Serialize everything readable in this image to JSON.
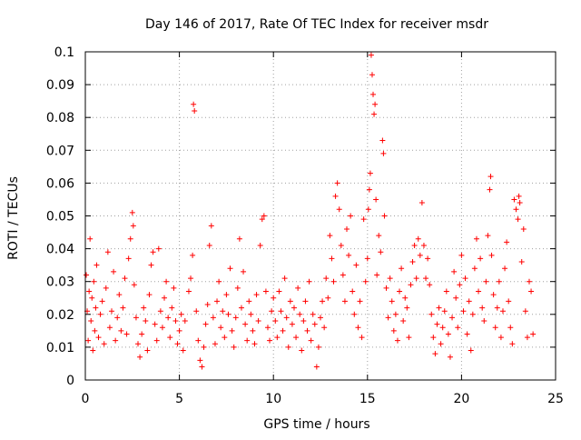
{
  "chart_data": {
    "type": "scatter",
    "title": "Day 146 of 2017, Rate Of TEC Index for receiver msdr",
    "xlabel": "GPS time / hours",
    "ylabel": "ROTI / TECUs",
    "xlim": [
      0,
      25
    ],
    "ylim": [
      0,
      0.1
    ],
    "x_ticks": [
      0,
      5,
      10,
      15,
      20,
      25
    ],
    "x_tick_labels": [
      "0",
      "5",
      "10",
      "15",
      "20",
      "25"
    ],
    "y_ticks": [
      0,
      0.01,
      0.02,
      0.03,
      0.04,
      0.05,
      0.06,
      0.07,
      0.08,
      0.09,
      0.1
    ],
    "y_tick_labels": [
      "0",
      "0.01",
      "0.02",
      "0.03",
      "0.04",
      "0.05",
      "0.06",
      "0.07",
      "0.08",
      "0.09",
      "0.1"
    ],
    "grid": true,
    "marker": "plus",
    "color": "#ff0000",
    "series": [
      {
        "points": [
          [
            0.05,
            0.032
          ],
          [
            0.1,
            0.021
          ],
          [
            0.15,
            0.012
          ],
          [
            0.2,
            0.027
          ],
          [
            0.25,
            0.043
          ],
          [
            0.3,
            0.018
          ],
          [
            0.35,
            0.025
          ],
          [
            0.4,
            0.009
          ],
          [
            0.45,
            0.03
          ],
          [
            0.5,
            0.015
          ],
          [
            0.55,
            0.022
          ],
          [
            0.6,
            0.035
          ],
          [
            0.7,
            0.013
          ],
          [
            0.8,
            0.02
          ],
          [
            0.9,
            0.024
          ],
          [
            1.0,
            0.011
          ],
          [
            1.1,
            0.028
          ],
          [
            1.2,
            0.039
          ],
          [
            1.3,
            0.016
          ],
          [
            1.4,
            0.021
          ],
          [
            1.5,
            0.033
          ],
          [
            1.6,
            0.012
          ],
          [
            1.7,
            0.019
          ],
          [
            1.8,
            0.026
          ],
          [
            1.9,
            0.015
          ],
          [
            2.0,
            0.022
          ],
          [
            2.1,
            0.031
          ],
          [
            2.2,
            0.014
          ],
          [
            2.3,
            0.037
          ],
          [
            2.4,
            0.043
          ],
          [
            2.5,
            0.051
          ],
          [
            2.55,
            0.047
          ],
          [
            2.6,
            0.029
          ],
          [
            2.7,
            0.019
          ],
          [
            2.8,
            0.011
          ],
          [
            2.9,
            0.007
          ],
          [
            3.0,
            0.014
          ],
          [
            3.1,
            0.022
          ],
          [
            3.2,
            0.018
          ],
          [
            3.3,
            0.009
          ],
          [
            3.4,
            0.026
          ],
          [
            3.5,
            0.035
          ],
          [
            3.6,
            0.039
          ],
          [
            3.7,
            0.017
          ],
          [
            3.8,
            0.012
          ],
          [
            3.9,
            0.04
          ],
          [
            4.0,
            0.021
          ],
          [
            4.1,
            0.016
          ],
          [
            4.2,
            0.025
          ],
          [
            4.3,
            0.03
          ],
          [
            4.4,
            0.019
          ],
          [
            4.5,
            0.013
          ],
          [
            4.6,
            0.022
          ],
          [
            4.7,
            0.028
          ],
          [
            4.8,
            0.018
          ],
          [
            4.9,
            0.011
          ],
          [
            5.0,
            0.015
          ],
          [
            5.1,
            0.02
          ],
          [
            5.2,
            0.009
          ],
          [
            5.3,
            0.018
          ],
          [
            5.5,
            0.027
          ],
          [
            5.6,
            0.031
          ],
          [
            5.7,
            0.038
          ],
          [
            5.75,
            0.084
          ],
          [
            5.8,
            0.082
          ],
          [
            5.9,
            0.021
          ],
          [
            6.0,
            0.012
          ],
          [
            6.1,
            0.006
          ],
          [
            6.2,
            0.004
          ],
          [
            6.3,
            0.01
          ],
          [
            6.4,
            0.017
          ],
          [
            6.5,
            0.023
          ],
          [
            6.6,
            0.041
          ],
          [
            6.7,
            0.047
          ],
          [
            6.8,
            0.019
          ],
          [
            6.9,
            0.011
          ],
          [
            7.0,
            0.024
          ],
          [
            7.1,
            0.03
          ],
          [
            7.2,
            0.016
          ],
          [
            7.3,
            0.021
          ],
          [
            7.4,
            0.013
          ],
          [
            7.5,
            0.026
          ],
          [
            7.6,
            0.02
          ],
          [
            7.7,
            0.034
          ],
          [
            7.8,
            0.015
          ],
          [
            7.9,
            0.01
          ],
          [
            8.0,
            0.019
          ],
          [
            8.1,
            0.028
          ],
          [
            8.2,
            0.043
          ],
          [
            8.3,
            0.022
          ],
          [
            8.4,
            0.033
          ],
          [
            8.5,
            0.017
          ],
          [
            8.6,
            0.012
          ],
          [
            8.7,
            0.024
          ],
          [
            8.8,
            0.02
          ],
          [
            8.9,
            0.015
          ],
          [
            9.0,
            0.011
          ],
          [
            9.1,
            0.026
          ],
          [
            9.2,
            0.018
          ],
          [
            9.3,
            0.041
          ],
          [
            9.4,
            0.049
          ],
          [
            9.5,
            0.05
          ],
          [
            9.6,
            0.027
          ],
          [
            9.7,
            0.016
          ],
          [
            9.8,
            0.012
          ],
          [
            9.9,
            0.021
          ],
          [
            10.0,
            0.025
          ],
          [
            10.1,
            0.018
          ],
          [
            10.2,
            0.013
          ],
          [
            10.3,
            0.027
          ],
          [
            10.4,
            0.021
          ],
          [
            10.5,
            0.015
          ],
          [
            10.6,
            0.031
          ],
          [
            10.7,
            0.019
          ],
          [
            10.8,
            0.01
          ],
          [
            10.9,
            0.024
          ],
          [
            11.0,
            0.017
          ],
          [
            11.1,
            0.022
          ],
          [
            11.2,
            0.013
          ],
          [
            11.3,
            0.028
          ],
          [
            11.4,
            0.02
          ],
          [
            11.5,
            0.009
          ],
          [
            11.6,
            0.018
          ],
          [
            11.7,
            0.024
          ],
          [
            11.8,
            0.015
          ],
          [
            11.9,
            0.03
          ],
          [
            12.0,
            0.012
          ],
          [
            12.1,
            0.02
          ],
          [
            12.2,
            0.017
          ],
          [
            12.3,
            0.004
          ],
          [
            12.4,
            0.01
          ],
          [
            12.5,
            0.019
          ],
          [
            12.6,
            0.024
          ],
          [
            12.7,
            0.016
          ],
          [
            12.8,
            0.031
          ],
          [
            12.9,
            0.025
          ],
          [
            13.0,
            0.044
          ],
          [
            13.1,
            0.037
          ],
          [
            13.2,
            0.03
          ],
          [
            13.3,
            0.056
          ],
          [
            13.4,
            0.06
          ],
          [
            13.5,
            0.052
          ],
          [
            13.6,
            0.041
          ],
          [
            13.7,
            0.032
          ],
          [
            13.8,
            0.024
          ],
          [
            13.9,
            0.046
          ],
          [
            14.0,
            0.038
          ],
          [
            14.1,
            0.05
          ],
          [
            14.2,
            0.027
          ],
          [
            14.3,
            0.02
          ],
          [
            14.4,
            0.035
          ],
          [
            14.5,
            0.016
          ],
          [
            14.6,
            0.024
          ],
          [
            14.7,
            0.013
          ],
          [
            14.8,
            0.049
          ],
          [
            14.9,
            0.03
          ],
          [
            15.0,
            0.037
          ],
          [
            15.05,
            0.052
          ],
          [
            15.1,
            0.058
          ],
          [
            15.15,
            0.063
          ],
          [
            15.2,
            0.099
          ],
          [
            15.25,
            0.093
          ],
          [
            15.3,
            0.087
          ],
          [
            15.35,
            0.081
          ],
          [
            15.4,
            0.084
          ],
          [
            15.45,
            0.055
          ],
          [
            15.5,
            0.032
          ],
          [
            15.6,
            0.044
          ],
          [
            15.7,
            0.039
          ],
          [
            15.8,
            0.073
          ],
          [
            15.85,
            0.069
          ],
          [
            15.9,
            0.05
          ],
          [
            16.0,
            0.028
          ],
          [
            16.1,
            0.019
          ],
          [
            16.2,
            0.031
          ],
          [
            16.3,
            0.024
          ],
          [
            16.4,
            0.015
          ],
          [
            16.5,
            0.02
          ],
          [
            16.6,
            0.012
          ],
          [
            16.7,
            0.027
          ],
          [
            16.8,
            0.034
          ],
          [
            16.9,
            0.018
          ],
          [
            17.0,
            0.025
          ],
          [
            17.1,
            0.022
          ],
          [
            17.2,
            0.013
          ],
          [
            17.3,
            0.029
          ],
          [
            17.4,
            0.036
          ],
          [
            17.5,
            0.041
          ],
          [
            17.6,
            0.031
          ],
          [
            17.7,
            0.043
          ],
          [
            17.8,
            0.038
          ],
          [
            17.9,
            0.054
          ],
          [
            18.0,
            0.041
          ],
          [
            18.1,
            0.031
          ],
          [
            18.2,
            0.037
          ],
          [
            18.3,
            0.029
          ],
          [
            18.4,
            0.02
          ],
          [
            18.5,
            0.013
          ],
          [
            18.6,
            0.008
          ],
          [
            18.7,
            0.017
          ],
          [
            18.8,
            0.022
          ],
          [
            18.9,
            0.011
          ],
          [
            19.0,
            0.016
          ],
          [
            19.1,
            0.021
          ],
          [
            19.2,
            0.027
          ],
          [
            19.3,
            0.014
          ],
          [
            19.4,
            0.007
          ],
          [
            19.5,
            0.019
          ],
          [
            19.6,
            0.033
          ],
          [
            19.7,
            0.025
          ],
          [
            19.8,
            0.016
          ],
          [
            19.9,
            0.029
          ],
          [
            20.0,
            0.038
          ],
          [
            20.1,
            0.021
          ],
          [
            20.2,
            0.031
          ],
          [
            20.3,
            0.014
          ],
          [
            20.4,
            0.024
          ],
          [
            20.5,
            0.009
          ],
          [
            20.6,
            0.02
          ],
          [
            20.7,
            0.034
          ],
          [
            20.8,
            0.043
          ],
          [
            20.9,
            0.027
          ],
          [
            21.0,
            0.037
          ],
          [
            21.1,
            0.022
          ],
          [
            21.2,
            0.018
          ],
          [
            21.3,
            0.03
          ],
          [
            21.4,
            0.044
          ],
          [
            21.5,
            0.058
          ],
          [
            21.55,
            0.062
          ],
          [
            21.6,
            0.038
          ],
          [
            21.7,
            0.026
          ],
          [
            21.8,
            0.016
          ],
          [
            21.9,
            0.022
          ],
          [
            22.0,
            0.03
          ],
          [
            22.1,
            0.013
          ],
          [
            22.2,
            0.021
          ],
          [
            22.3,
            0.034
          ],
          [
            22.4,
            0.042
          ],
          [
            22.5,
            0.024
          ],
          [
            22.6,
            0.016
          ],
          [
            22.7,
            0.011
          ],
          [
            22.8,
            0.055
          ],
          [
            22.9,
            0.052
          ],
          [
            23.0,
            0.049
          ],
          [
            23.05,
            0.056
          ],
          [
            23.1,
            0.054
          ],
          [
            23.2,
            0.036
          ],
          [
            23.3,
            0.046
          ],
          [
            23.4,
            0.021
          ],
          [
            23.5,
            0.013
          ],
          [
            23.6,
            0.03
          ],
          [
            23.7,
            0.027
          ],
          [
            23.8,
            0.014
          ]
        ]
      }
    ]
  }
}
